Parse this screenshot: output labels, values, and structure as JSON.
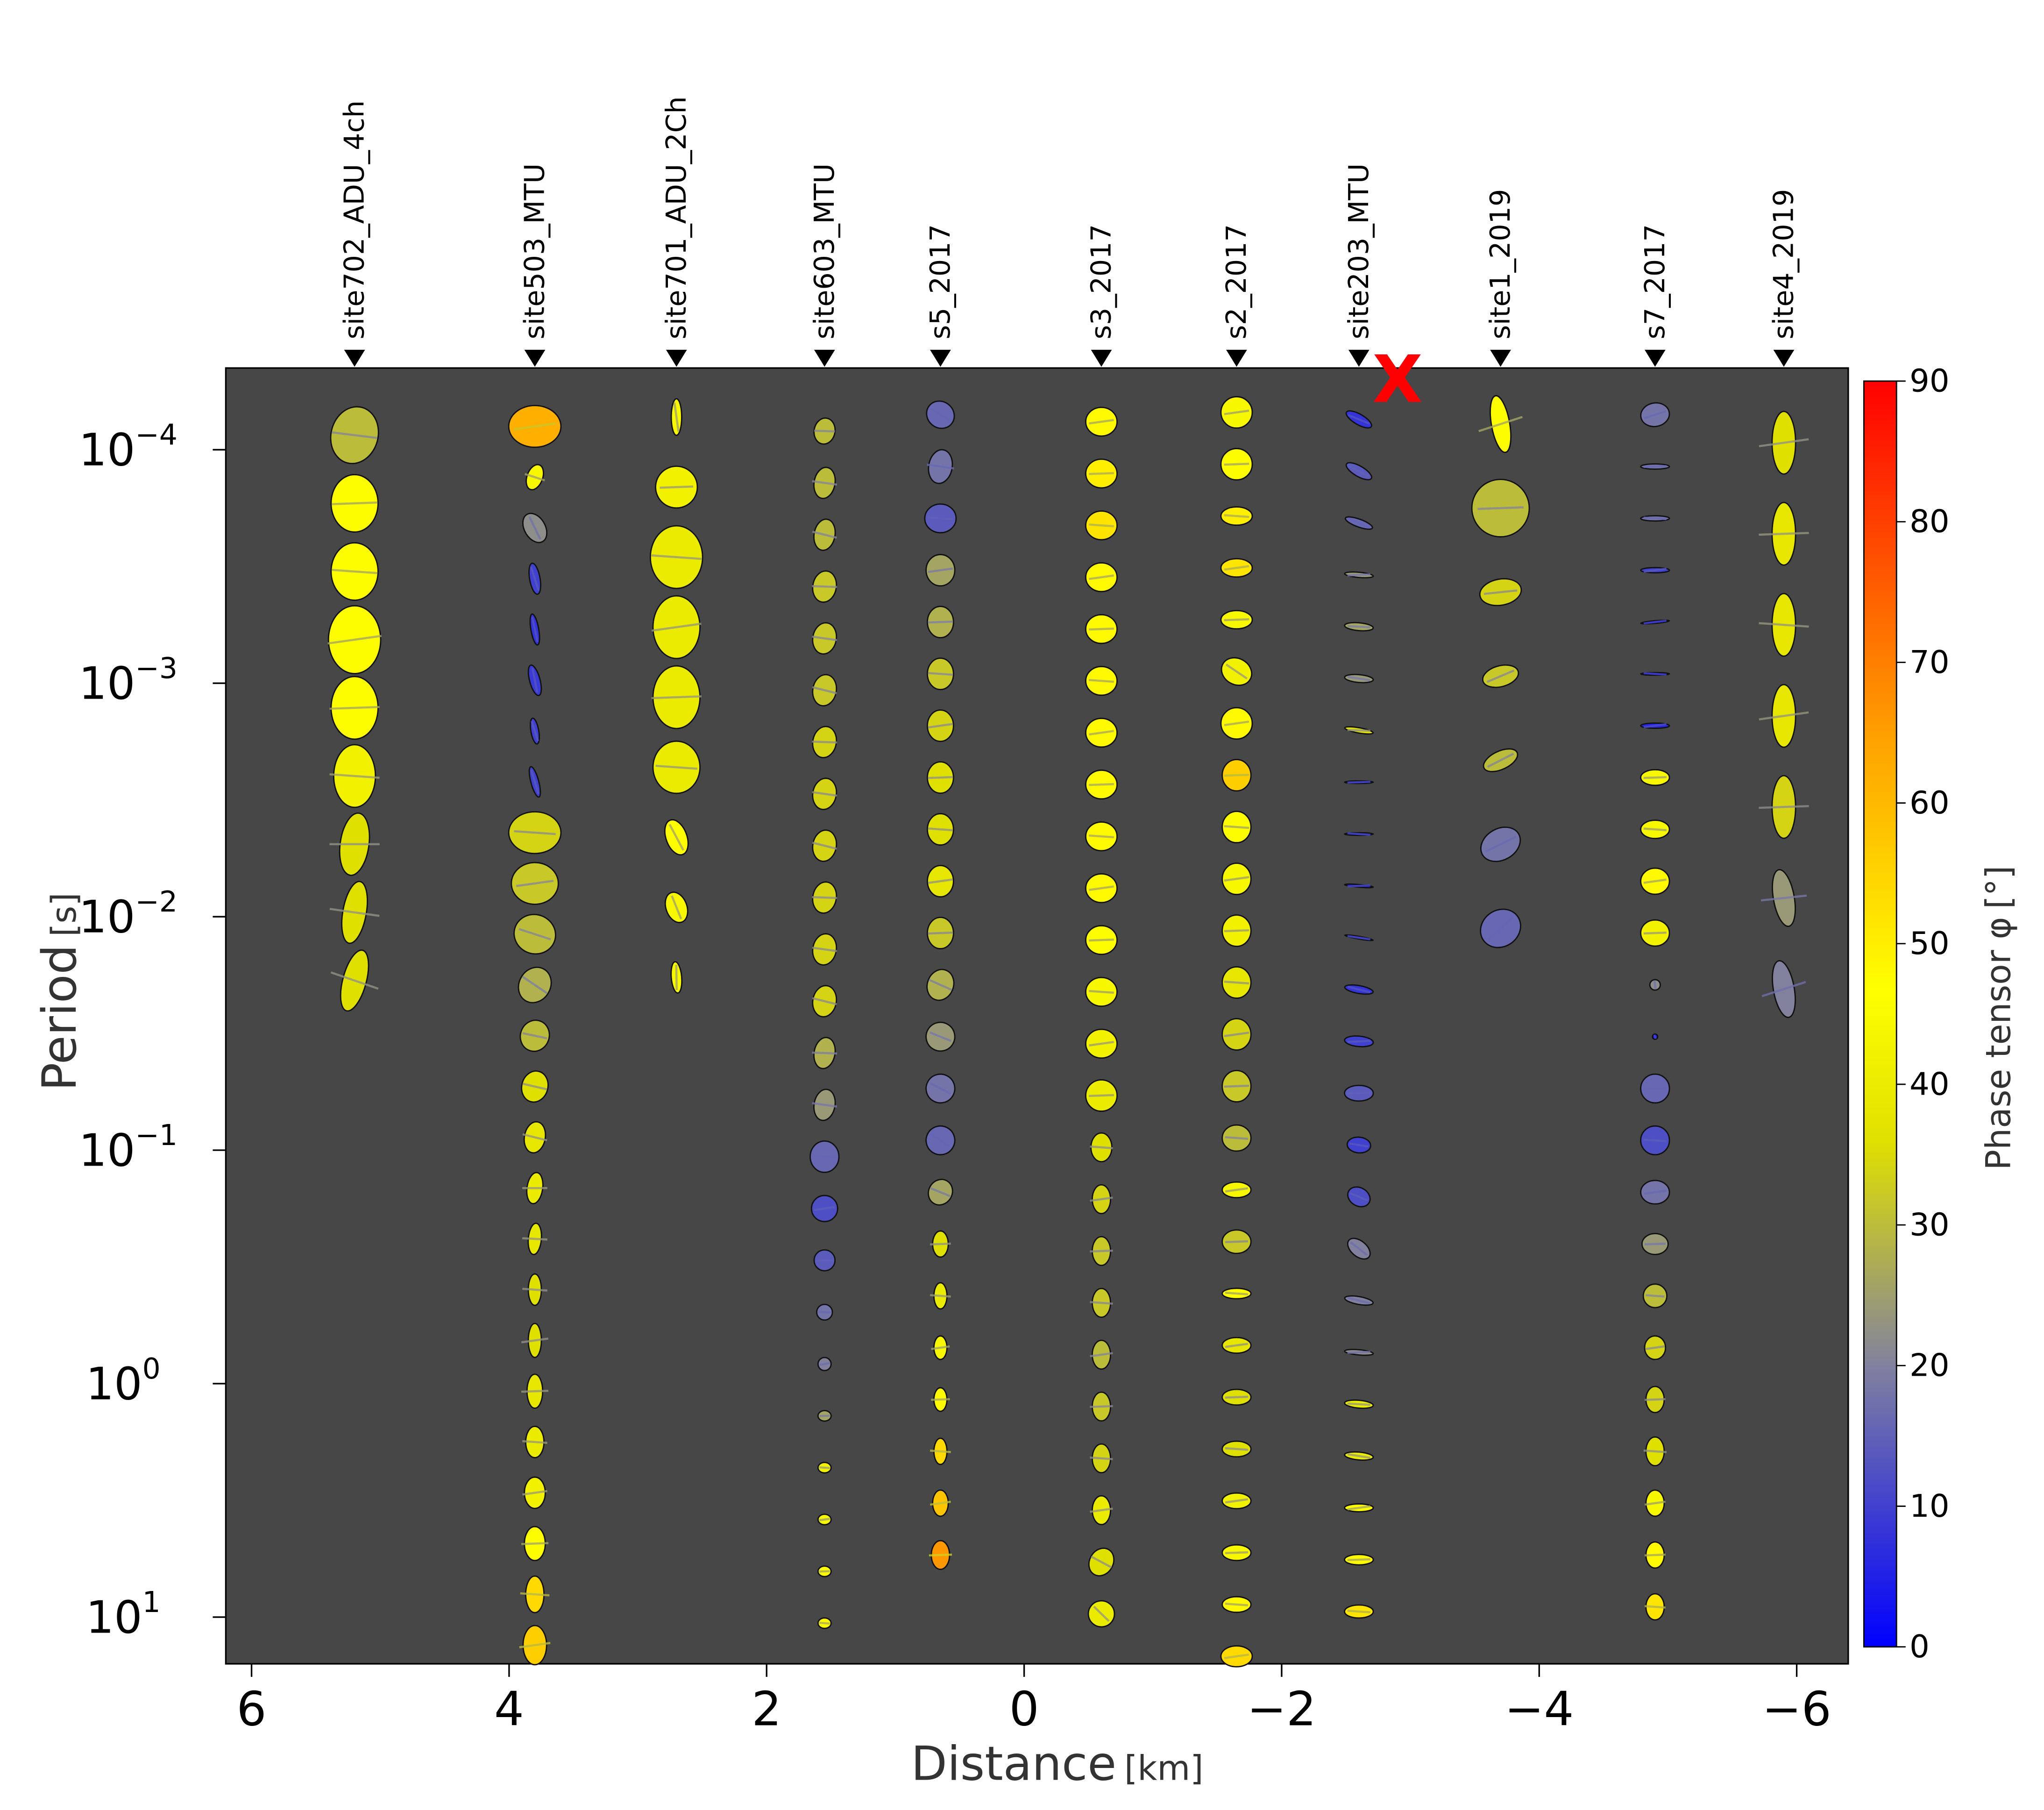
{
  "chart_data": {
    "type": "scatter",
    "subtype": "phase-tensor-pseudosection",
    "xlabel": "Distance",
    "xlabel_unit": "[km]",
    "ylabel": "Period",
    "ylabel_unit": "[s]",
    "x_reversed": true,
    "xlim": [
      6.2,
      -6.4
    ],
    "x_ticks": [
      6,
      4,
      2,
      0,
      -2,
      -4,
      -6
    ],
    "x_tick_labels": [
      "6",
      "4",
      "2",
      "0",
      "−2",
      "−4",
      "−6"
    ],
    "ylim_log10": [
      -4.35,
      1.2
    ],
    "y_ticks": [
      {
        "base": "10",
        "exp": "−4"
      },
      {
        "base": "10",
        "exp": "−3"
      },
      {
        "base": "10",
        "exp": "−2"
      },
      {
        "base": "10",
        "exp": "−1"
      },
      {
        "base": "10",
        "exp": "0"
      },
      {
        "base": "10",
        "exp": "1"
      }
    ],
    "y_tick_log10": [
      -4,
      -3,
      -2,
      -1,
      0,
      1
    ],
    "background_color": "#474747",
    "colorbar": {
      "label": "Phase tensor φ",
      "unit": "[°]",
      "range": [
        0,
        90
      ],
      "ticks": [
        "0",
        "10",
        "20",
        "30",
        "40",
        "50",
        "60",
        "70",
        "80",
        "90"
      ],
      "colors": [
        "#0000ff",
        "#8080a0",
        "#e0e000",
        "#ffff00",
        "#ffa000",
        "#ff0000"
      ]
    },
    "marker": {
      "symbol": "X",
      "color": "#ff0000",
      "distance_km": -2.9
    },
    "stations": [
      {
        "name": "site702_ADU_4ch",
        "distance": 5.2,
        "logp_start": -4.0625,
        "logp_step": 0.292,
        "phimax": [
          30,
          46,
          46,
          46,
          46,
          42,
          36,
          36,
          36
        ],
        "rx": [
          18,
          18,
          18,
          20,
          18,
          16,
          11,
          9,
          9
        ],
        "ry": [
          22,
          22,
          22,
          26,
          24,
          24,
          24,
          24,
          24
        ],
        "ang": [
          15,
          0,
          0,
          0,
          0,
          0,
          8,
          10,
          15
        ]
      },
      {
        "name": "site503_MTU",
        "distance": 3.8,
        "logp_start": -4.1,
        "logp_step": 0.2175,
        "phimax": [
          62,
          44,
          22,
          10,
          8,
          9,
          10,
          10,
          34,
          32,
          30,
          28,
          30,
          36,
          38,
          40,
          38,
          36,
          36,
          38,
          40,
          42,
          46,
          54,
          56
        ],
        "rx": [
          20,
          6,
          12,
          12,
          12,
          12,
          10,
          12,
          20,
          18,
          16,
          12,
          11,
          10,
          8,
          6,
          5,
          5,
          5,
          6,
          7,
          8,
          8,
          7,
          9
        ],
        "ry": [
          16,
          10,
          8,
          4,
          3,
          4,
          3,
          3,
          16,
          16,
          15,
          14,
          12,
          12,
          12,
          12,
          12,
          12,
          13,
          13,
          12,
          12,
          13,
          14,
          15
        ],
        "ang": [
          0,
          20,
          60,
          80,
          80,
          75,
          80,
          75,
          0,
          0,
          20,
          30,
          20,
          15,
          10,
          8,
          5,
          0,
          0,
          0,
          0,
          0,
          0,
          0,
          0
        ]
      },
      {
        "name": "site701_ADU_2Ch",
        "distance": 2.7,
        "logp_start": -4.14,
        "logp_step": 0.3,
        "phimax": [
          44,
          42,
          40,
          40,
          40,
          40,
          46,
          44,
          44
        ],
        "rx": [
          14,
          16,
          20,
          18,
          18,
          18,
          14,
          12,
          12
        ],
        "ry": [
          4,
          16,
          24,
          24,
          24,
          20,
          8,
          8,
          4
        ],
        "ang": [
          90,
          0,
          0,
          0,
          0,
          0,
          70,
          70,
          85
        ]
      },
      {
        "name": "site603_MTU",
        "distance": 1.55,
        "logp_start": -4.08,
        "logp_step": 0.222,
        "phimax": [
          30,
          30,
          30,
          32,
          32,
          32,
          34,
          34,
          34,
          34,
          34,
          34,
          28,
          24,
          16,
          12,
          14,
          18,
          20,
          26,
          42,
          44,
          46,
          48
        ],
        "rx": [
          8,
          8,
          8,
          9,
          9,
          9,
          9,
          9,
          9,
          9,
          9,
          9,
          8,
          8,
          11,
          10,
          8,
          6,
          5,
          5,
          5,
          5,
          5,
          5
        ],
        "ry": [
          10,
          12,
          12,
          12,
          12,
          12,
          12,
          12,
          12,
          12,
          12,
          12,
          12,
          12,
          12,
          10,
          8,
          6,
          5,
          4,
          4,
          4,
          4,
          4
        ],
        "ang": [
          10,
          10,
          10,
          10,
          10,
          10,
          10,
          10,
          10,
          10,
          10,
          10,
          10,
          10,
          0,
          0,
          0,
          0,
          0,
          0,
          0,
          0,
          0,
          0
        ]
      },
      {
        "name": "s5_2017",
        "distance": 0.65,
        "logp_start": -4.15,
        "logp_step": 0.222,
        "phimax": [
          16,
          18,
          14,
          26,
          28,
          32,
          34,
          36,
          36,
          38,
          32,
          28,
          24,
          18,
          16,
          26,
          36,
          40,
          44,
          48,
          54,
          58,
          66
        ],
        "rx": [
          11,
          9,
          12,
          11,
          10,
          10,
          10,
          10,
          10,
          10,
          10,
          10,
          11,
          11,
          11,
          9,
          6,
          5,
          5,
          5,
          5,
          6,
          7
        ],
        "ry": [
          10,
          13,
          11,
          12,
          12,
          12,
          12,
          12,
          12,
          12,
          12,
          12,
          11,
          11,
          11,
          10,
          10,
          10,
          9,
          9,
          10,
          10,
          11
        ],
        "ang": [
          40,
          10,
          0,
          0,
          0,
          0,
          0,
          0,
          0,
          0,
          0,
          20,
          30,
          30,
          30,
          30,
          0,
          0,
          0,
          0,
          0,
          0,
          0
        ]
      },
      {
        "name": "s3_2017",
        "distance": -0.6,
        "logp_start": -4.12,
        "logp_step": 0.222,
        "phimax": [
          48,
          50,
          52,
          48,
          48,
          48,
          48,
          48,
          48,
          48,
          46,
          44,
          42,
          40,
          36,
          34,
          32,
          32,
          30,
          32,
          34,
          40,
          36,
          40
        ],
        "rx": [
          12,
          12,
          12,
          12,
          12,
          12,
          12,
          12,
          12,
          12,
          12,
          12,
          12,
          12,
          8,
          7,
          7,
          7,
          7,
          7,
          7,
          7,
          9,
          10
        ],
        "ry": [
          11,
          11,
          11,
          11,
          11,
          11,
          11,
          11,
          11,
          11,
          11,
          11,
          11,
          12,
          11,
          11,
          11,
          11,
          11,
          11,
          11,
          11,
          11,
          10
        ],
        "ang": [
          0,
          0,
          0,
          0,
          0,
          0,
          0,
          0,
          0,
          0,
          0,
          0,
          0,
          0,
          0,
          0,
          0,
          0,
          0,
          0,
          0,
          0,
          30,
          40
        ]
      },
      {
        "name": "s2_2017",
        "distance": -1.65,
        "logp_start": -4.16,
        "logp_step": 0.222,
        "phimax": [
          44,
          46,
          50,
          52,
          44,
          42,
          48,
          56,
          46,
          44,
          42,
          38,
          34,
          32,
          30,
          44,
          32,
          46,
          38,
          36,
          36,
          42,
          44,
          48,
          54
        ],
        "rx": [
          12,
          12,
          12,
          12,
          12,
          12,
          12,
          11,
          11,
          11,
          11,
          11,
          11,
          11,
          11,
          11,
          11,
          11,
          11,
          11,
          11,
          11,
          11,
          11,
          12
        ],
        "ry": [
          12,
          12,
          7,
          7,
          7,
          10,
          12,
          12,
          12,
          12,
          12,
          12,
          12,
          12,
          10,
          6,
          9,
          4,
          6,
          6,
          6,
          6,
          6,
          6,
          8
        ],
        "ang": [
          0,
          0,
          0,
          0,
          0,
          30,
          0,
          0,
          0,
          0,
          0,
          0,
          0,
          0,
          0,
          0,
          0,
          0,
          0,
          0,
          0,
          0,
          0,
          0,
          0
        ]
      },
      {
        "name": "site203_MTU",
        "distance": -2.6,
        "logp_start": -4.13,
        "logp_step": 0.222,
        "phimax": [
          8,
          14,
          16,
          24,
          26,
          24,
          36,
          4,
          4,
          4,
          4,
          8,
          10,
          14,
          10,
          12,
          20,
          20,
          22,
          40,
          40,
          46,
          48,
          52
        ],
        "rx": [
          11,
          11,
          11,
          11,
          11,
          11,
          11,
          11,
          11,
          11,
          11,
          11,
          11,
          11,
          9,
          9,
          10,
          11,
          11,
          11,
          11,
          11,
          11,
          11
        ],
        "ry": [
          4,
          4,
          3,
          2,
          3,
          3,
          2,
          1,
          1,
          1,
          1,
          3,
          4,
          6,
          6,
          7,
          6,
          3,
          2,
          3,
          3,
          3,
          4,
          5
        ],
        "ang": [
          30,
          30,
          20,
          5,
          5,
          5,
          10,
          0,
          0,
          5,
          10,
          10,
          5,
          0,
          5,
          30,
          40,
          10,
          5,
          5,
          5,
          0,
          0,
          0
        ]
      },
      {
        "name": "site1_2019",
        "distance": -3.7,
        "logp_start": -4.11,
        "logp_step": 0.36,
        "phimax": [
          46,
          30,
          34,
          32,
          30,
          18,
          16
        ],
        "rx": [
          7,
          22,
          16,
          14,
          14,
          16,
          16
        ],
        "ry": [
          22,
          22,
          10,
          8,
          7,
          12,
          14
        ],
        "ang": [
          -10,
          0,
          -10,
          -15,
          -25,
          -30,
          -35
        ]
      },
      {
        "name": "s7_2017",
        "distance": -4.9,
        "logp_start": -4.15,
        "logp_step": 0.222,
        "phimax": [
          18,
          18,
          18,
          10,
          2,
          2,
          6,
          44,
          44,
          48,
          42,
          22,
          4,
          16,
          12,
          18,
          24,
          30,
          34,
          34,
          36,
          44,
          48,
          52
        ],
        "rx": [
          11,
          11,
          11,
          11,
          11,
          11,
          11,
          11,
          11,
          11,
          11,
          4,
          2,
          11,
          11,
          11,
          10,
          9,
          8,
          7,
          7,
          7,
          7,
          7
        ],
        "ry": [
          9,
          2,
          2,
          2,
          1,
          1,
          2,
          6,
          7,
          10,
          10,
          4,
          2,
          11,
          11,
          9,
          8,
          9,
          9,
          10,
          11,
          10,
          10,
          10
        ],
        "ang": [
          -10,
          0,
          0,
          0,
          -5,
          0,
          0,
          0,
          0,
          0,
          0,
          80,
          80,
          0,
          0,
          0,
          0,
          0,
          0,
          0,
          0,
          0,
          0,
          0
        ]
      },
      {
        "name": "site4_2019",
        "distance": -5.9,
        "logp_start": -4.03,
        "logp_step": 0.39,
        "phimax": [
          36,
          38,
          38,
          38,
          34,
          24,
          20
        ],
        "rx": [
          9,
          9,
          9,
          9,
          9,
          8,
          8
        ],
        "ry": [
          24,
          24,
          24,
          24,
          24,
          22,
          22
        ],
        "ang": [
          0,
          0,
          0,
          0,
          0,
          -10,
          -10
        ]
      }
    ]
  }
}
